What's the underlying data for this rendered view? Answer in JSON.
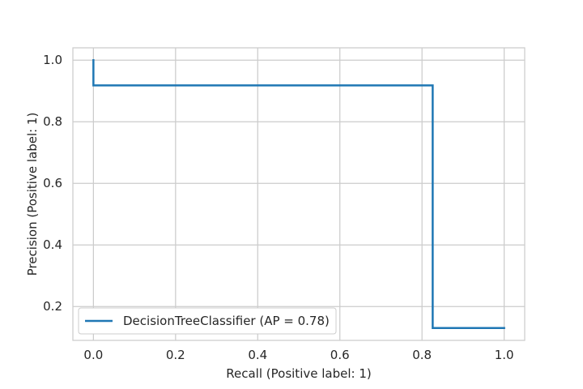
{
  "chart_data": {
    "type": "line",
    "title": "",
    "xlabel": "Recall (Positive label: 1)",
    "ylabel": "Precision (Positive label: 1)",
    "xlim": [
      -0.05,
      1.05
    ],
    "ylim": [
      0.09,
      1.04
    ],
    "xticks": [
      0.0,
      0.2,
      0.4,
      0.6,
      0.8,
      1.0
    ],
    "xtick_labels": [
      "0.0",
      "0.2",
      "0.4",
      "0.6",
      "0.8",
      "1.0"
    ],
    "yticks": [
      0.2,
      0.4,
      0.6,
      0.8,
      1.0
    ],
    "ytick_labels": [
      "0.2",
      "0.4",
      "0.6",
      "0.8",
      "1.0"
    ],
    "grid": true,
    "legend_position": "lower-left",
    "drawstyle": "steps-post",
    "series": [
      {
        "name": "DecisionTreeClassifier (AP = 0.78)",
        "color": "#1f77b4",
        "x": [
          0.0,
          0.0,
          0.826,
          0.826,
          1.0
        ],
        "y": [
          1.0,
          0.918,
          0.918,
          0.13,
          0.13
        ]
      }
    ]
  }
}
